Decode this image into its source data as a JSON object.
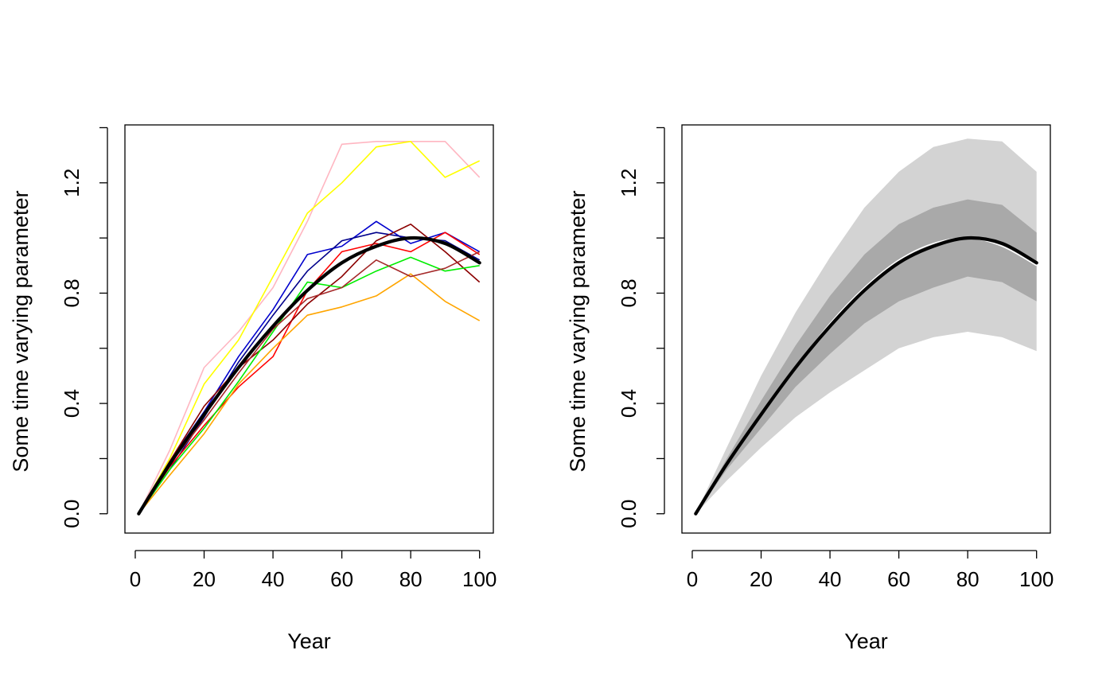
{
  "chart_data": [
    {
      "type": "line",
      "title": "",
      "xlabel": "Year",
      "ylabel": "Some time varying parameter",
      "xlim": [
        -3,
        104
      ],
      "ylim": [
        -0.07,
        1.41
      ],
      "x_ticks": [
        0,
        20,
        40,
        60,
        80,
        100
      ],
      "x_tick_labels": [
        "0",
        "20",
        "40",
        "60",
        "80",
        "100"
      ],
      "y_ticks": [
        0,
        0.2,
        0.4,
        0.6,
        0.8,
        1.0,
        1.2,
        1.4
      ],
      "y_tick_labels": [
        "0.0",
        "",
        "0.4",
        "",
        "0.8",
        "",
        "1.2",
        ""
      ],
      "grid": false,
      "legend": "none",
      "true_trend": {
        "color": "#000000",
        "x": [
          1,
          10,
          20,
          30,
          40,
          50,
          60,
          70,
          80,
          90,
          100
        ],
        "y": [
          0.0,
          0.18,
          0.36,
          0.53,
          0.68,
          0.81,
          0.91,
          0.97,
          1.0,
          0.98,
          0.91
        ]
      },
      "series": [
        {
          "color": "#ffb6c1",
          "x": [
            1,
            10,
            20,
            30,
            40,
            50,
            60,
            70,
            80,
            90,
            100
          ],
          "y": [
            0.0,
            0.23,
            0.53,
            0.66,
            0.82,
            1.06,
            1.34,
            1.35,
            1.35,
            1.35,
            1.22
          ]
        },
        {
          "color": "#ffff00",
          "x": [
            1,
            10,
            20,
            30,
            40,
            50,
            60,
            70,
            80,
            90,
            100
          ],
          "y": [
            0.0,
            0.2,
            0.47,
            0.63,
            0.86,
            1.09,
            1.2,
            1.33,
            1.35,
            1.22,
            1.28
          ]
        },
        {
          "color": "#0000cd",
          "x": [
            1,
            10,
            20,
            30,
            40,
            50,
            60,
            70,
            80,
            90,
            100
          ],
          "y": [
            0.0,
            0.19,
            0.37,
            0.57,
            0.74,
            0.94,
            0.97,
            1.06,
            0.98,
            1.02,
            0.95
          ]
        },
        {
          "color": "#00008b",
          "x": [
            1,
            10,
            20,
            30,
            40,
            50,
            60,
            70,
            80,
            90,
            100
          ],
          "y": [
            0.0,
            0.16,
            0.35,
            0.55,
            0.72,
            0.88,
            0.99,
            1.02,
            1.0,
            0.99,
            0.92
          ]
        },
        {
          "color": "#ff0000",
          "x": [
            1,
            10,
            20,
            30,
            40,
            50,
            60,
            70,
            80,
            90,
            100
          ],
          "y": [
            0.0,
            0.17,
            0.32,
            0.46,
            0.57,
            0.81,
            0.95,
            0.98,
            0.95,
            1.02,
            0.94
          ]
        },
        {
          "color": "#8b0000",
          "x": [
            1,
            10,
            20,
            30,
            40,
            50,
            60,
            70,
            80,
            90,
            100
          ],
          "y": [
            0.0,
            0.19,
            0.39,
            0.53,
            0.63,
            0.76,
            0.86,
            0.99,
            1.05,
            0.95,
            0.84
          ]
        },
        {
          "color": "#00ee00",
          "x": [
            1,
            10,
            20,
            30,
            40,
            50,
            60,
            70,
            80,
            90,
            100
          ],
          "y": [
            0.0,
            0.16,
            0.31,
            0.48,
            0.66,
            0.84,
            0.82,
            0.88,
            0.93,
            0.88,
            0.9
          ]
        },
        {
          "color": "#ffa500",
          "x": [
            1,
            10,
            20,
            30,
            40,
            50,
            60,
            70,
            80,
            90,
            100
          ],
          "y": [
            0.0,
            0.14,
            0.29,
            0.47,
            0.6,
            0.72,
            0.75,
            0.79,
            0.87,
            0.77,
            0.7
          ]
        },
        {
          "color": "#a52a2a",
          "x": [
            1,
            10,
            20,
            30,
            40,
            50,
            60,
            70,
            80,
            90,
            100
          ],
          "y": [
            0.0,
            0.18,
            0.34,
            0.51,
            0.67,
            0.78,
            0.82,
            0.92,
            0.86,
            0.89,
            0.95
          ]
        }
      ]
    },
    {
      "type": "area",
      "title": "",
      "xlabel": "Year",
      "ylabel": "Some time varying parameter",
      "xlim": [
        -3,
        104
      ],
      "ylim": [
        -0.07,
        1.41
      ],
      "x_ticks": [
        0,
        20,
        40,
        60,
        80,
        100
      ],
      "x_tick_labels": [
        "0",
        "20",
        "40",
        "60",
        "80",
        "100"
      ],
      "y_ticks": [
        0,
        0.2,
        0.4,
        0.6,
        0.8,
        1.0,
        1.2,
        1.4
      ],
      "y_tick_labels": [
        "0.0",
        "",
        "0.4",
        "",
        "0.8",
        "",
        "1.2",
        ""
      ],
      "grid": false,
      "legend": "none",
      "x": [
        1,
        10,
        20,
        30,
        40,
        50,
        60,
        70,
        80,
        90,
        100
      ],
      "outer_band": {
        "color": "#d3d3d3",
        "lower": [
          0.0,
          0.12,
          0.24,
          0.35,
          0.44,
          0.52,
          0.6,
          0.64,
          0.66,
          0.64,
          0.59
        ],
        "upper": [
          0.0,
          0.24,
          0.5,
          0.73,
          0.93,
          1.11,
          1.24,
          1.33,
          1.36,
          1.35,
          1.24
        ]
      },
      "inner_band": {
        "color": "#a9a9a9",
        "lower": [
          0.0,
          0.16,
          0.31,
          0.46,
          0.58,
          0.69,
          0.77,
          0.82,
          0.86,
          0.84,
          0.77
        ],
        "upper": [
          0.0,
          0.2,
          0.41,
          0.61,
          0.79,
          0.94,
          1.05,
          1.11,
          1.14,
          1.12,
          1.02
        ]
      },
      "median": {
        "color": "#ffffff",
        "y": [
          0.0,
          0.18,
          0.36,
          0.53,
          0.69,
          0.82,
          0.92,
          0.98,
          1.0,
          0.97,
          0.9
        ]
      },
      "true_trend": {
        "color": "#000000",
        "y": [
          0.0,
          0.18,
          0.36,
          0.53,
          0.68,
          0.81,
          0.91,
          0.97,
          1.0,
          0.98,
          0.91
        ]
      }
    }
  ]
}
